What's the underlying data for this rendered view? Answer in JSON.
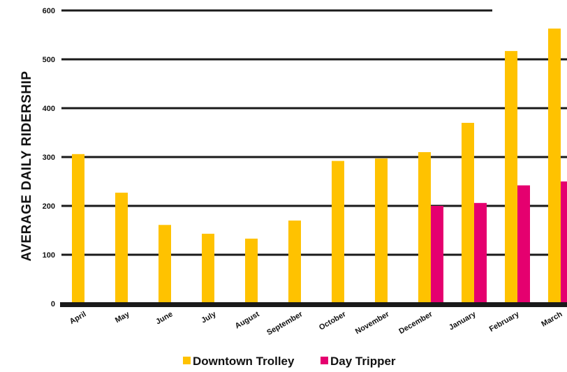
{
  "chart_data": {
    "type": "bar",
    "ylabel": "AVERAGE DAILY RIDERSHIP",
    "xlabel": "",
    "ylim": [
      0,
      600
    ],
    "yticks": [
      "0",
      "100",
      "200",
      "300",
      "400",
      "500",
      "600"
    ],
    "grid": true,
    "legend_position": "bottom",
    "categories": [
      "April",
      "May",
      "June",
      "July",
      "August",
      "September",
      "October",
      "November",
      "December",
      "January",
      "February",
      "March"
    ],
    "series": [
      {
        "name": "Downtown Trolley",
        "color": "#ffc200",
        "values": [
          306,
          227,
          161,
          143,
          133,
          170,
          292,
          297,
          310,
          370,
          517,
          563
        ]
      },
      {
        "name": "Day Tripper",
        "color": "#e5006f",
        "values": [
          null,
          null,
          null,
          null,
          null,
          null,
          null,
          null,
          200,
          206,
          242,
          250
        ]
      }
    ]
  }
}
